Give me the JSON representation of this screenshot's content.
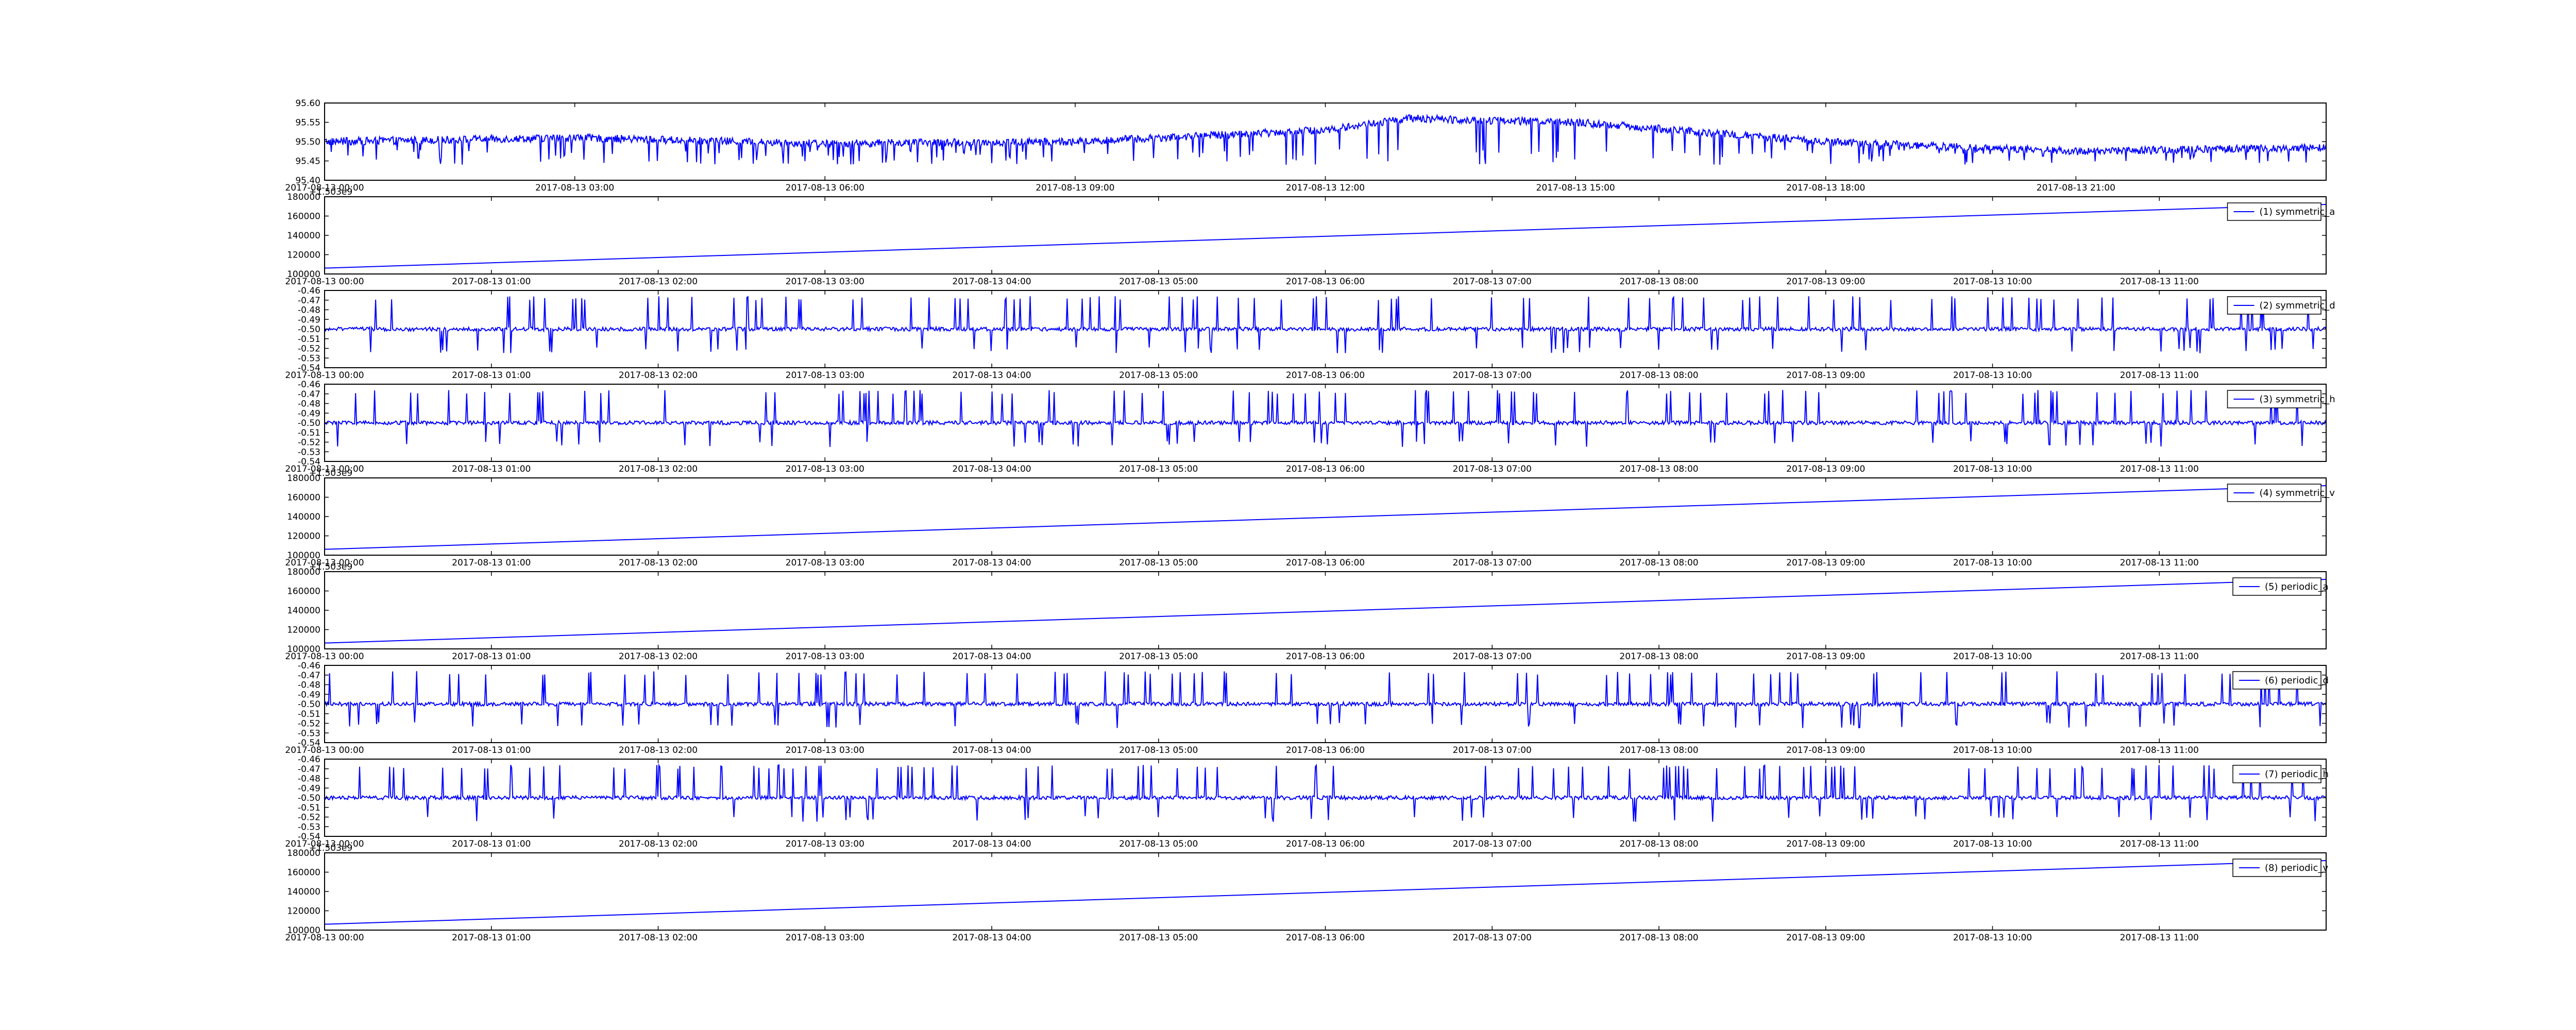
{
  "chart_data": [
    {
      "type": "line",
      "panel": 0,
      "legend": "",
      "offset_label": "",
      "ylim": [
        95.4,
        95.6
      ],
      "yticks": [
        "95.40",
        "95.45",
        "95.50",
        "95.55",
        "95.60"
      ],
      "x_range": [
        "2017-08-13 00:00",
        "2017-08-14 00:00"
      ],
      "xticks": [
        "2017-08-13 00:00",
        "2017-08-13 03:00",
        "2017-08-13 06:00",
        "2017-08-13 09:00",
        "2017-08-13 12:00",
        "2017-08-13 15:00",
        "2017-08-13 18:00",
        "2017-08-13 21:00"
      ],
      "baseline": {
        "x": [
          "2017-08-13 00:00",
          "2017-08-13 03:00",
          "2017-08-13 06:00",
          "2017-08-13 09:00",
          "2017-08-13 12:00",
          "2017-08-13 13:00",
          "2017-08-13 15:00",
          "2017-08-13 18:00",
          "2017-08-13 21:00",
          "2017-08-14 00:00"
        ],
        "y": [
          95.5,
          95.51,
          95.495,
          95.5,
          95.53,
          95.56,
          95.55,
          95.5,
          95.475,
          95.485
        ]
      },
      "spikes_down_to": 95.44,
      "line_color": "#0000ff",
      "grid": false
    },
    {
      "type": "line",
      "panel": 1,
      "legend": "(1) symmetric_a",
      "offset_label": "+1.503e9",
      "ylim": [
        90000,
        190000
      ],
      "yticks": [
        "100000",
        "120000",
        "140000",
        "160000",
        "180000"
      ],
      "x_range": [
        "2017-08-13 00:00",
        "2017-08-13 12:00"
      ],
      "xticks": [
        "2017-08-13 00:00",
        "2017-08-13 01:00",
        "2017-08-13 02:00",
        "2017-08-13 03:00",
        "2017-08-13 04:00",
        "2017-08-13 05:00",
        "2017-08-13 06:00",
        "2017-08-13 07:00",
        "2017-08-13 08:00",
        "2017-08-13 09:00",
        "2017-08-13 10:00",
        "2017-08-13 11:00"
      ],
      "series": [
        {
          "x": [
            "2017-08-13 00:00",
            "2017-08-13 12:00"
          ],
          "y": [
            97600,
            180000
          ]
        }
      ],
      "line_color": "#0000ff",
      "grid": false
    },
    {
      "type": "line",
      "panel": 2,
      "legend": "(2) symmetric_d",
      "offset_label": "",
      "ylim": [
        -0.54,
        -0.46
      ],
      "yticks": [
        "-0.54",
        "-0.53",
        "-0.52",
        "-0.51",
        "-0.50",
        "-0.49",
        "-0.48",
        "-0.47",
        "-0.46"
      ],
      "x_range": [
        "2017-08-13 00:00",
        "2017-08-13 12:00"
      ],
      "xticks": [
        "2017-08-13 00:00",
        "2017-08-13 01:00",
        "2017-08-13 02:00",
        "2017-08-13 03:00",
        "2017-08-13 04:00",
        "2017-08-13 05:00",
        "2017-08-13 06:00",
        "2017-08-13 07:00",
        "2017-08-13 08:00",
        "2017-08-13 09:00",
        "2017-08-13 10:00",
        "2017-08-13 11:00"
      ],
      "baseline_y": -0.5,
      "spike_range": [
        -0.525,
        -0.47
      ],
      "line_color": "#0000ff",
      "grid": false
    },
    {
      "type": "line",
      "panel": 3,
      "legend": "(3) symmetric_h",
      "offset_label": "",
      "ylim": [
        -0.54,
        -0.46
      ],
      "yticks": [
        "-0.54",
        "-0.53",
        "-0.52",
        "-0.51",
        "-0.50",
        "-0.49",
        "-0.48",
        "-0.47",
        "-0.46"
      ],
      "x_range": [
        "2017-08-13 00:00",
        "2017-08-13 12:00"
      ],
      "xticks": [
        "2017-08-13 00:00",
        "2017-08-13 01:00",
        "2017-08-13 02:00",
        "2017-08-13 03:00",
        "2017-08-13 04:00",
        "2017-08-13 05:00",
        "2017-08-13 06:00",
        "2017-08-13 07:00",
        "2017-08-13 08:00",
        "2017-08-13 09:00",
        "2017-08-13 10:00",
        "2017-08-13 11:00"
      ],
      "baseline_y": -0.5,
      "spike_range": [
        -0.525,
        -0.47
      ],
      "line_color": "#0000ff",
      "grid": false
    },
    {
      "type": "line",
      "panel": 4,
      "legend": "(4) symmetric_v",
      "offset_label": "+1.503e9",
      "ylim": [
        90000,
        190000
      ],
      "yticks": [
        "100000",
        "120000",
        "140000",
        "160000",
        "180000"
      ],
      "x_range": [
        "2017-08-13 00:00",
        "2017-08-13 12:00"
      ],
      "xticks": [
        "2017-08-13 00:00",
        "2017-08-13 01:00",
        "2017-08-13 02:00",
        "2017-08-13 03:00",
        "2017-08-13 04:00",
        "2017-08-13 05:00",
        "2017-08-13 06:00",
        "2017-08-13 07:00",
        "2017-08-13 08:00",
        "2017-08-13 09:00",
        "2017-08-13 10:00",
        "2017-08-13 11:00"
      ],
      "series": [
        {
          "x": [
            "2017-08-13 00:00",
            "2017-08-13 12:00"
          ],
          "y": [
            97600,
            180000
          ]
        }
      ],
      "line_color": "#0000ff",
      "grid": false
    },
    {
      "type": "line",
      "panel": 5,
      "legend": "(5) periodic_a",
      "offset_label": "+1.503e9",
      "ylim": [
        90000,
        190000
      ],
      "yticks": [
        "100000",
        "120000",
        "140000",
        "160000",
        "180000"
      ],
      "x_range": [
        "2017-08-13 00:00",
        "2017-08-13 12:00"
      ],
      "xticks": [
        "2017-08-13 00:00",
        "2017-08-13 01:00",
        "2017-08-13 02:00",
        "2017-08-13 03:00",
        "2017-08-13 04:00",
        "2017-08-13 05:00",
        "2017-08-13 06:00",
        "2017-08-13 07:00",
        "2017-08-13 08:00",
        "2017-08-13 09:00",
        "2017-08-13 10:00",
        "2017-08-13 11:00"
      ],
      "series": [
        {
          "x": [
            "2017-08-13 00:00",
            "2017-08-13 12:00"
          ],
          "y": [
            97600,
            180000
          ]
        }
      ],
      "line_color": "#0000ff",
      "grid": false
    },
    {
      "type": "line",
      "panel": 6,
      "legend": "(6) periodic_d",
      "offset_label": "",
      "ylim": [
        -0.54,
        -0.46
      ],
      "yticks": [
        "-0.54",
        "-0.53",
        "-0.52",
        "-0.51",
        "-0.50",
        "-0.49",
        "-0.48",
        "-0.47",
        "-0.46"
      ],
      "x_range": [
        "2017-08-13 00:00",
        "2017-08-13 12:00"
      ],
      "xticks": [
        "2017-08-13 00:00",
        "2017-08-13 01:00",
        "2017-08-13 02:00",
        "2017-08-13 03:00",
        "2017-08-13 04:00",
        "2017-08-13 05:00",
        "2017-08-13 06:00",
        "2017-08-13 07:00",
        "2017-08-13 08:00",
        "2017-08-13 09:00",
        "2017-08-13 10:00",
        "2017-08-13 11:00"
      ],
      "baseline_y": -0.5,
      "spike_range": [
        -0.525,
        -0.47
      ],
      "line_color": "#0000ff",
      "grid": false
    },
    {
      "type": "line",
      "panel": 7,
      "legend": "(7) periodic_h",
      "offset_label": "",
      "ylim": [
        -0.54,
        -0.46
      ],
      "yticks": [
        "-0.54",
        "-0.53",
        "-0.52",
        "-0.51",
        "-0.50",
        "-0.49",
        "-0.48",
        "-0.47",
        "-0.46"
      ],
      "x_range": [
        "2017-08-13 00:00",
        "2017-08-13 12:00"
      ],
      "xticks": [
        "2017-08-13 00:00",
        "2017-08-13 01:00",
        "2017-08-13 02:00",
        "2017-08-13 03:00",
        "2017-08-13 04:00",
        "2017-08-13 05:00",
        "2017-08-13 06:00",
        "2017-08-13 07:00",
        "2017-08-13 08:00",
        "2017-08-13 09:00",
        "2017-08-13 10:00",
        "2017-08-13 11:00"
      ],
      "baseline_y": -0.5,
      "spike_range": [
        -0.525,
        -0.47
      ],
      "line_color": "#0000ff",
      "grid": false
    },
    {
      "type": "line",
      "panel": 8,
      "legend": "(8) periodic_v",
      "offset_label": "+1.503e9",
      "ylim": [
        90000,
        190000
      ],
      "yticks": [
        "100000",
        "120000",
        "140000",
        "160000",
        "180000"
      ],
      "x_range": [
        "2017-08-13 00:00",
        "2017-08-13 12:00"
      ],
      "xticks": [
        "2017-08-13 00:00",
        "2017-08-13 01:00",
        "2017-08-13 02:00",
        "2017-08-13 03:00",
        "2017-08-13 04:00",
        "2017-08-13 05:00",
        "2017-08-13 06:00",
        "2017-08-13 07:00",
        "2017-08-13 08:00",
        "2017-08-13 09:00",
        "2017-08-13 10:00",
        "2017-08-13 11:00"
      ],
      "series": [
        {
          "x": [
            "2017-08-13 00:00",
            "2017-08-13 12:00"
          ],
          "y": [
            97600,
            180000
          ]
        }
      ],
      "line_color": "#0000ff",
      "grid": false
    }
  ]
}
